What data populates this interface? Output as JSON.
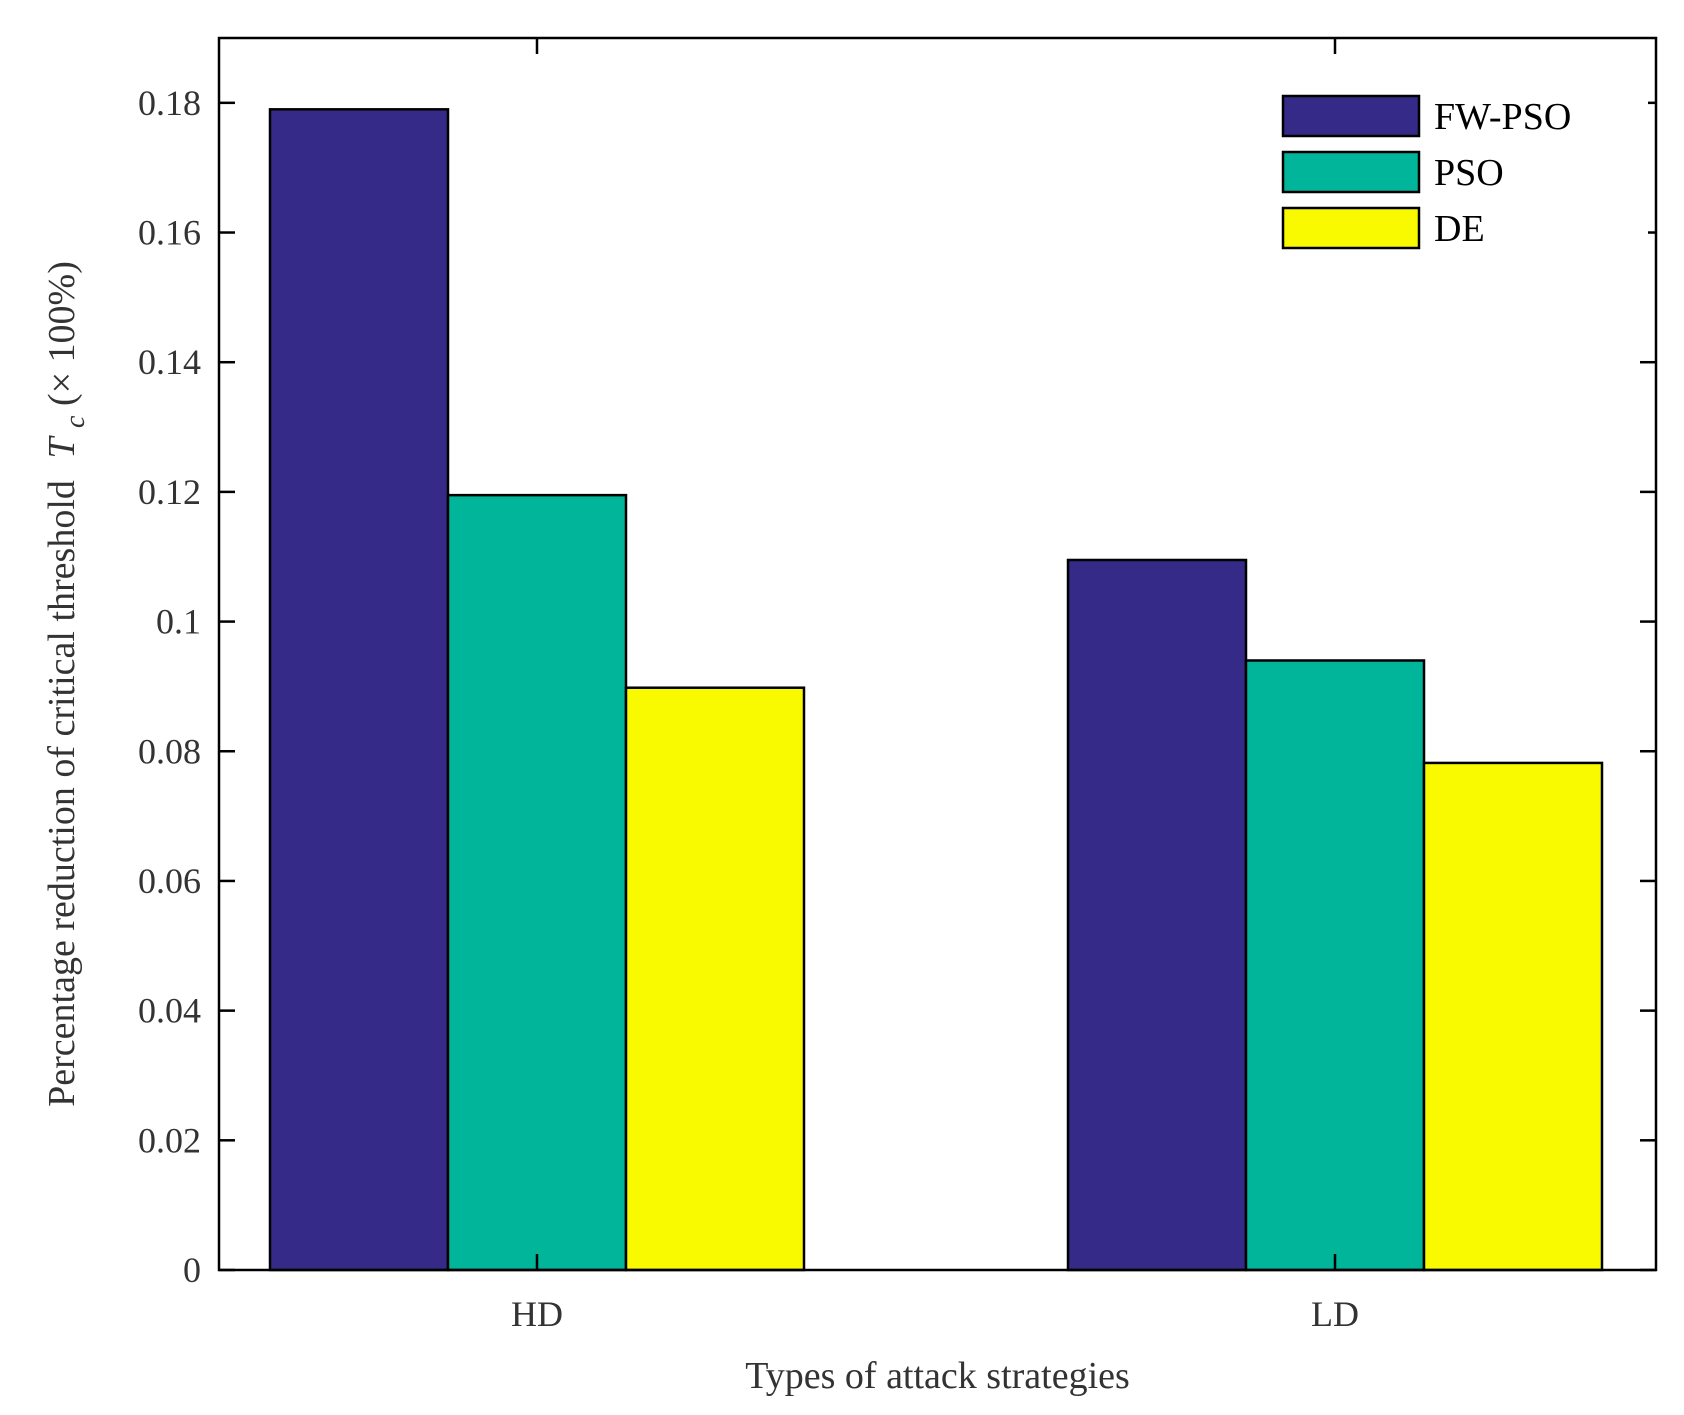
{
  "chart_data": {
    "type": "bar",
    "title": "",
    "categories": [
      "HD",
      "LD"
    ],
    "series": [
      {
        "name": "FW-PSO",
        "color": "#352a87",
        "values": [
          0.179,
          0.1095
        ]
      },
      {
        "name": "PSO",
        "color": "#00b59a",
        "values": [
          0.1195,
          0.094
        ]
      },
      {
        "name": "DE",
        "color": "#f9f900",
        "values": [
          0.0898,
          0.0782
        ]
      }
    ],
    "xlabel": "Types of attack strategies",
    "ylabel": {
      "prefix": "Percentage reduction of critical threshold",
      "symbol": "T",
      "subscript": "c",
      "suffix": "(× 100%)"
    },
    "ylim": [
      0,
      0.19
    ],
    "yticks": [
      0,
      0.02,
      0.04,
      0.06,
      0.08,
      0.1,
      0.12,
      0.14,
      0.16,
      0.18
    ],
    "ytick_labels": [
      "0",
      "0.02",
      "0.04",
      "0.06",
      "0.08",
      "0.1",
      "0.12",
      "0.14",
      "0.16",
      "0.18"
    ],
    "grid": false,
    "legend_position": "top-right"
  }
}
